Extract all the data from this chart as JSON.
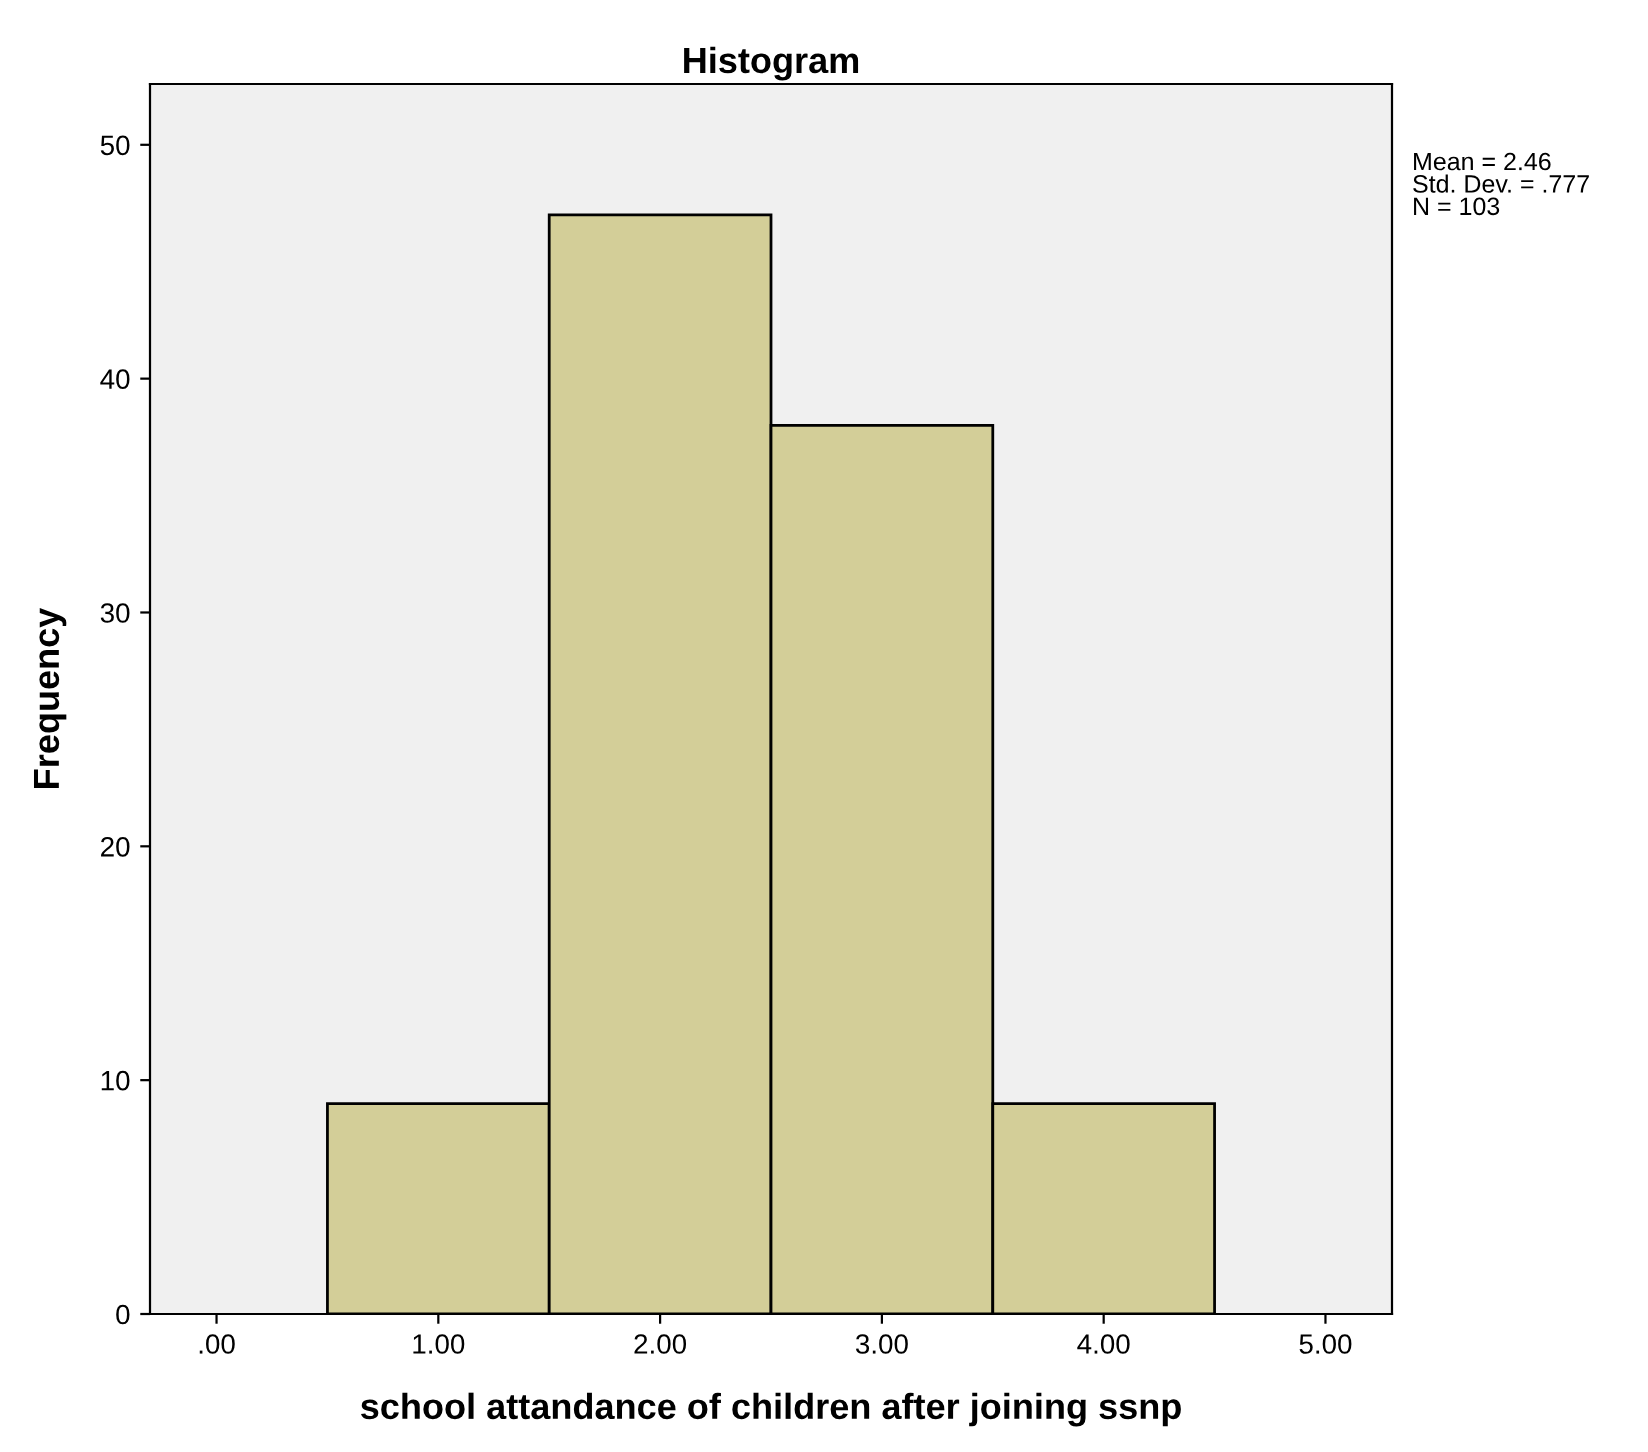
{
  "chart_data": {
    "type": "histogram",
    "title": "Histogram",
    "xlabel": "school attandance of children after joining ssnp",
    "ylabel": "Frequency",
    "bins": [
      0.5,
      1.5,
      2.5,
      3.5,
      4.5
    ],
    "values": [
      9,
      47,
      38,
      9
    ],
    "color": "#d3ce98",
    "xlim": [
      -0.3,
      5.3
    ],
    "xticks": [
      {
        "value": 0,
        "label": ".00"
      },
      {
        "value": 1,
        "label": "1.00"
      },
      {
        "value": 2,
        "label": "2.00"
      },
      {
        "value": 3,
        "label": "3.00"
      },
      {
        "value": 4,
        "label": "4.00"
      },
      {
        "value": 5,
        "label": "5.00"
      }
    ],
    "ylim": [
      0,
      52.6
    ],
    "yticks": [
      0,
      10,
      20,
      30,
      40,
      50
    ],
    "annotations": [
      "Mean = 2.46\nStd. Dev. = .777\nN = 103"
    ],
    "grid": false,
    "legend": false
  }
}
